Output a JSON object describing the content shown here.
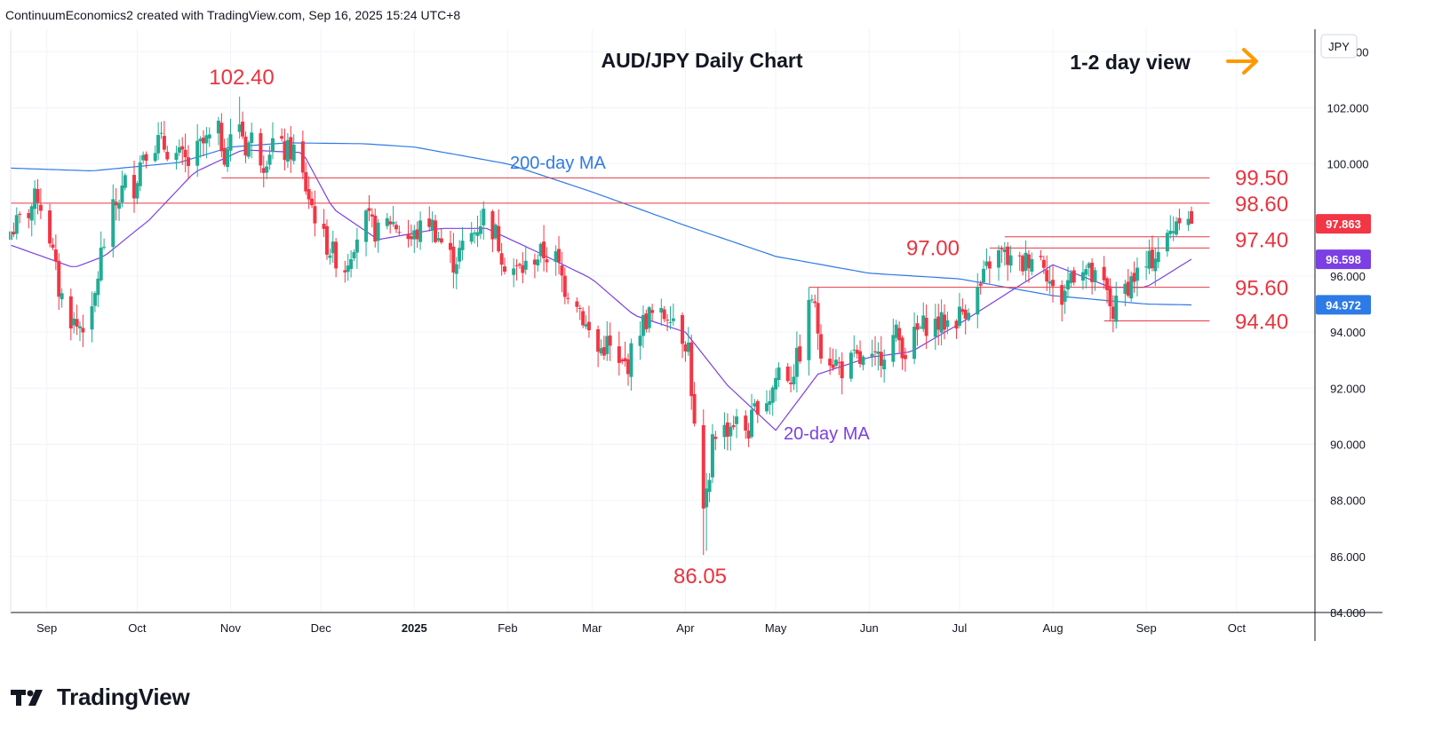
{
  "header": {
    "attribution": "ContinuumEconomics2 created with TradingView.com, Sep 16, 2025 15:24 UTC+8"
  },
  "footer": {
    "brand": "TradingView"
  },
  "colors": {
    "up": "#22ab94",
    "down": "#f23645",
    "ma200": "#2e7ae6",
    "ma20": "#7b3fe4",
    "level_line": "#e53945",
    "level_text": "#e8343f",
    "arrow": "#ff9800",
    "grid": "#f0f3fa"
  },
  "chart_data": {
    "type": "candlestick",
    "title": "AUD/JPY Daily Chart",
    "view_label": "1-2 day view",
    "view_icon": "arrow-right-icon",
    "currency_label": "JPY",
    "y_ticks": [
      "104.000",
      "102.000",
      "100.000",
      "98.000",
      "96.000",
      "94.000",
      "92.000",
      "90.000",
      "88.000",
      "86.000",
      "84.000"
    ],
    "ylim": [
      84,
      104.8
    ],
    "x_ticks": [
      {
        "label": "Sep",
        "date": "2024-09-01"
      },
      {
        "label": "Oct",
        "date": "2024-10-01"
      },
      {
        "label": "Nov",
        "date": "2024-11-01"
      },
      {
        "label": "Dec",
        "date": "2024-12-01"
      },
      {
        "label": "2025",
        "date": "2025-01-01"
      },
      {
        "label": "Feb",
        "date": "2025-02-01"
      },
      {
        "label": "Mar",
        "date": "2025-03-01"
      },
      {
        "label": "Apr",
        "date": "2025-04-01"
      },
      {
        "label": "May",
        "date": "2025-05-01"
      },
      {
        "label": "Jun",
        "date": "2025-06-01"
      },
      {
        "label": "Jul",
        "date": "2025-07-01"
      },
      {
        "label": "Aug",
        "date": "2025-08-01"
      },
      {
        "label": "Sep",
        "date": "2025-09-01"
      },
      {
        "label": "Oct",
        "date": "2025-10-01"
      }
    ],
    "xlim": [
      "2024-08-20",
      "2025-10-27"
    ],
    "price_badges": [
      {
        "label": "97.863",
        "value": 97.863,
        "color": "#f23645"
      },
      {
        "label": "96.598",
        "value": 96.598,
        "color": "#7b3fe4"
      },
      {
        "label": "94.972",
        "value": 94.972,
        "color": "#2e7ae6"
      }
    ],
    "levels": [
      {
        "label": "99.50",
        "value": 99.5,
        "from": "2024-10-29",
        "to": "2025-09-22"
      },
      {
        "label": "98.60",
        "value": 98.6,
        "from": "2024-08-20",
        "to": "2025-09-22"
      },
      {
        "label": "97.40",
        "value": 97.4,
        "from": "2025-07-16",
        "to": "2025-09-22"
      },
      {
        "label": "97.00",
        "value": 97.0,
        "from": "2025-07-11",
        "to": "2025-09-22"
      },
      {
        "label": "95.60",
        "value": 95.6,
        "from": "2025-05-12",
        "to": "2025-09-22"
      },
      {
        "label": "94.40",
        "value": 94.4,
        "from": "2025-08-18",
        "to": "2025-09-22"
      }
    ],
    "annotations": [
      {
        "text": "102.40",
        "date": "2024-11-04",
        "value": 102.4
      },
      {
        "text": "86.05",
        "date": "2025-04-08",
        "value": 86.05
      },
      {
        "text": "200-day MA",
        "series": "ma200"
      },
      {
        "text": "20-day MA",
        "series": "ma20"
      }
    ],
    "anchors": [
      [
        "2024-08-20",
        97.6
      ],
      [
        "2024-08-26",
        98.3
      ],
      [
        "2024-08-29",
        98.9
      ],
      [
        "2024-09-02",
        97.4
      ],
      [
        "2024-09-05",
        95.5
      ],
      [
        "2024-09-09",
        94.5
      ],
      [
        "2024-09-11",
        94.2
      ],
      [
        "2024-09-16",
        94.5
      ],
      [
        "2024-09-19",
        96.8
      ],
      [
        "2024-09-23",
        98.3
      ],
      [
        "2024-09-27",
        99.3
      ],
      [
        "2024-09-30",
        99.2
      ],
      [
        "2024-10-03",
        100.5
      ],
      [
        "2024-10-08",
        100.8
      ],
      [
        "2024-10-14",
        100.3
      ],
      [
        "2024-10-18",
        100.0
      ],
      [
        "2024-10-22",
        100.6
      ],
      [
        "2024-10-28",
        101.1
      ],
      [
        "2024-10-30",
        100.4
      ],
      [
        "2024-11-04",
        101.5
      ],
      [
        "2024-11-06",
        100.6
      ],
      [
        "2024-11-08",
        100.9
      ],
      [
        "2024-11-12",
        100.1
      ],
      [
        "2024-11-15",
        100.8
      ],
      [
        "2024-11-19",
        100.4
      ],
      [
        "2024-11-22",
        100.5
      ],
      [
        "2024-11-25",
        99.5
      ],
      [
        "2024-11-28",
        98.5
      ],
      [
        "2024-12-02",
        97.3
      ],
      [
        "2024-12-05",
        96.8
      ],
      [
        "2024-12-09",
        96.3
      ],
      [
        "2024-12-12",
        97.3
      ],
      [
        "2024-12-16",
        98.0
      ],
      [
        "2024-12-20",
        97.5
      ],
      [
        "2024-12-24",
        98.0
      ],
      [
        "2024-12-31",
        97.3
      ],
      [
        "2025-01-06",
        98.0
      ],
      [
        "2025-01-10",
        97.2
      ],
      [
        "2025-01-14",
        96.5
      ],
      [
        "2025-01-17",
        97.0
      ],
      [
        "2025-01-21",
        97.6
      ],
      [
        "2025-01-24",
        98.2
      ],
      [
        "2025-01-28",
        97.5
      ],
      [
        "2025-01-31",
        96.5
      ],
      [
        "2025-02-04",
        96.2
      ],
      [
        "2025-02-07",
        96.3
      ],
      [
        "2025-02-10",
        96.7
      ],
      [
        "2025-02-13",
        96.8
      ],
      [
        "2025-02-17",
        96.6
      ],
      [
        "2025-02-20",
        95.6
      ],
      [
        "2025-02-24",
        95.2
      ],
      [
        "2025-02-27",
        94.2
      ],
      [
        "2025-03-03",
        93.3
      ],
      [
        "2025-03-06",
        93.6
      ],
      [
        "2025-03-10",
        92.7
      ],
      [
        "2025-03-13",
        92.9
      ],
      [
        "2025-03-17",
        94.2
      ],
      [
        "2025-03-20",
        94.6
      ],
      [
        "2025-03-24",
        94.5
      ],
      [
        "2025-03-27",
        94.8
      ],
      [
        "2025-03-31",
        93.9
      ],
      [
        "2025-04-02",
        93.5
      ],
      [
        "2025-04-04",
        90.5
      ],
      [
        "2025-04-07",
        87.5
      ],
      [
        "2025-04-09",
        88.5
      ],
      [
        "2025-04-10",
        90.5
      ],
      [
        "2025-04-14",
        90.5
      ],
      [
        "2025-04-17",
        90.8
      ],
      [
        "2025-04-22",
        90.5
      ],
      [
        "2025-04-25",
        91.5
      ],
      [
        "2025-04-29",
        91.7
      ],
      [
        "2025-05-02",
        92.7
      ],
      [
        "2025-05-06",
        92.4
      ],
      [
        "2025-05-09",
        93.3
      ],
      [
        "2025-05-13",
        95.3
      ],
      [
        "2025-05-16",
        93.5
      ],
      [
        "2025-05-20",
        93.0
      ],
      [
        "2025-05-23",
        92.7
      ],
      [
        "2025-05-27",
        93.0
      ],
      [
        "2025-05-30",
        92.9
      ],
      [
        "2025-06-03",
        92.9
      ],
      [
        "2025-06-06",
        93.4
      ],
      [
        "2025-06-10",
        93.9
      ],
      [
        "2025-06-13",
        93.3
      ],
      [
        "2025-06-17",
        94.0
      ],
      [
        "2025-06-20",
        94.3
      ],
      [
        "2025-06-25",
        94.3
      ],
      [
        "2025-06-30",
        94.5
      ],
      [
        "2025-07-04",
        95.0
      ],
      [
        "2025-07-08",
        95.6
      ],
      [
        "2025-07-11",
        96.5
      ],
      [
        "2025-07-15",
        96.8
      ],
      [
        "2025-07-18",
        96.5
      ],
      [
        "2025-07-22",
        96.4
      ],
      [
        "2025-07-25",
        96.8
      ],
      [
        "2025-07-29",
        96.6
      ],
      [
        "2025-08-01",
        95.4
      ],
      [
        "2025-08-04",
        95.2
      ],
      [
        "2025-08-07",
        96.1
      ],
      [
        "2025-08-11",
        96.4
      ],
      [
        "2025-08-14",
        95.9
      ],
      [
        "2025-08-18",
        95.6
      ],
      [
        "2025-08-21",
        94.7
      ],
      [
        "2025-08-25",
        95.6
      ],
      [
        "2025-08-28",
        96.0
      ],
      [
        "2025-09-01",
        96.3
      ],
      [
        "2025-09-04",
        96.8
      ],
      [
        "2025-09-08",
        97.3
      ],
      [
        "2025-09-10",
        97.8
      ],
      [
        "2025-09-12",
        98.3
      ],
      [
        "2025-09-15",
        98.3
      ],
      [
        "2025-09-16",
        97.86
      ]
    ],
    "special_bars": {
      "2024-11-04": {
        "high": 102.4
      },
      "2025-04-07": {
        "low": 86.05
      },
      "2025-04-08": {
        "low": 86.2
      }
    },
    "ma200": [
      [
        "2024-08-20",
        99.85
      ],
      [
        "2024-09-16",
        99.75
      ],
      [
        "2024-10-15",
        100.05
      ],
      [
        "2024-11-01",
        100.6
      ],
      [
        "2024-11-20",
        100.75
      ],
      [
        "2024-12-15",
        100.72
      ],
      [
        "2025-01-01",
        100.6
      ],
      [
        "2025-02-01",
        100.0
      ],
      [
        "2025-03-01",
        99.0
      ],
      [
        "2025-04-01",
        97.8
      ],
      [
        "2025-05-01",
        96.7
      ],
      [
        "2025-06-01",
        96.1
      ],
      [
        "2025-07-01",
        95.9
      ],
      [
        "2025-08-01",
        95.3
      ],
      [
        "2025-09-01",
        95.0
      ],
      [
        "2025-09-16",
        94.97
      ]
    ],
    "ma20": [
      [
        "2024-08-20",
        97.1
      ],
      [
        "2024-09-10",
        96.3
      ],
      [
        "2024-09-20",
        96.7
      ],
      [
        "2024-10-05",
        98.0
      ],
      [
        "2024-10-20",
        99.7
      ],
      [
        "2024-11-05",
        100.5
      ],
      [
        "2024-11-25",
        100.4
      ],
      [
        "2024-12-05",
        98.4
      ],
      [
        "2024-12-20",
        97.3
      ],
      [
        "2025-01-10",
        97.7
      ],
      [
        "2025-01-25",
        97.7
      ],
      [
        "2025-02-10",
        96.9
      ],
      [
        "2025-03-01",
        95.9
      ],
      [
        "2025-03-15",
        94.6
      ],
      [
        "2025-04-01",
        94.0
      ],
      [
        "2025-04-15",
        92.1
      ],
      [
        "2025-05-01",
        90.5
      ],
      [
        "2025-05-15",
        92.5
      ],
      [
        "2025-06-01",
        93.1
      ],
      [
        "2025-06-15",
        93.3
      ],
      [
        "2025-07-01",
        94.3
      ],
      [
        "2025-07-20",
        95.6
      ],
      [
        "2025-08-01",
        96.4
      ],
      [
        "2025-08-20",
        95.6
      ],
      [
        "2025-09-01",
        95.6
      ],
      [
        "2025-09-16",
        96.6
      ]
    ]
  }
}
